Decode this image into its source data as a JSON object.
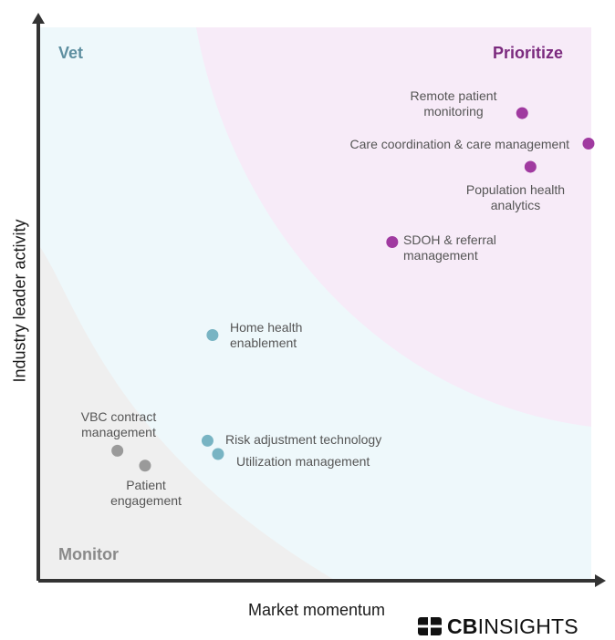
{
  "chart_data": {
    "type": "scatter",
    "xlabel": "Market momentum",
    "ylabel": "Industry leader activity",
    "xlim": [
      0,
      1
    ],
    "ylim": [
      0,
      1
    ],
    "quadrants": [
      {
        "name": "Vet",
        "color": "#5e8fa0"
      },
      {
        "name": "Prioritize",
        "color": "#7b2a7e"
      },
      {
        "name": "Monitor",
        "color": "#8a8a8a"
      }
    ],
    "points": [
      {
        "label": "Remote patient monitoring",
        "x": 0.875,
        "y": 0.845,
        "category": "Prioritize",
        "color": "#a03aa0"
      },
      {
        "label": "Care coordination & care management",
        "x": 0.995,
        "y": 0.79,
        "category": "Prioritize",
        "color": "#a03aa0"
      },
      {
        "label": "Population health analytics",
        "x": 0.89,
        "y": 0.748,
        "category": "Prioritize",
        "color": "#a03aa0"
      },
      {
        "label": "SDOH & referral management",
        "x": 0.64,
        "y": 0.612,
        "category": "Prioritize",
        "color": "#a03aa0"
      },
      {
        "label": "Home health enablement",
        "x": 0.315,
        "y": 0.444,
        "category": "Vet",
        "color": "#78b4c3"
      },
      {
        "label": "Risk adjustment technology",
        "x": 0.306,
        "y": 0.253,
        "category": "Vet",
        "color": "#78b4c3"
      },
      {
        "label": "Utilization management",
        "x": 0.325,
        "y": 0.229,
        "category": "Vet",
        "color": "#78b4c3"
      },
      {
        "label": "VBC contract management",
        "x": 0.143,
        "y": 0.235,
        "category": "Monitor",
        "color": "#9a9a9a"
      },
      {
        "label": "Patient engagement",
        "x": 0.193,
        "y": 0.208,
        "category": "Monitor",
        "color": "#9a9a9a"
      }
    ]
  },
  "brand": {
    "strong": "CB",
    "light": "INSIGHTS"
  }
}
